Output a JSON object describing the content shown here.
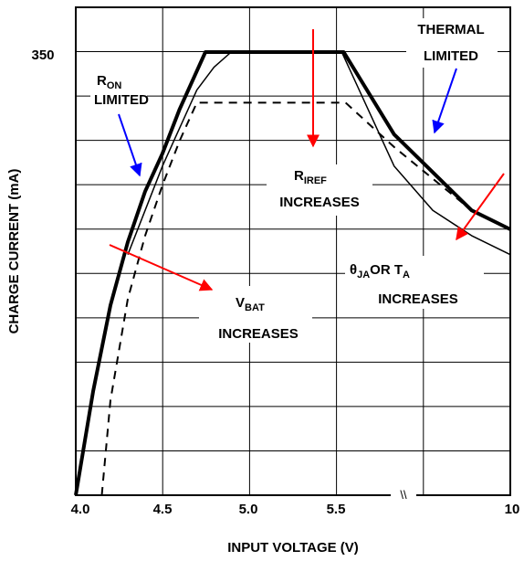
{
  "chart_data": {
    "type": "line",
    "title": "",
    "xlabel": "INPUT VOLTAGE (V)",
    "ylabel": "CHARGE CURRENT (mA)",
    "x_ticks": [
      "4.0",
      "4.5",
      "5.0",
      "5.5",
      "10"
    ],
    "y_ticks": [
      "350"
    ],
    "axis_break_mark": "\\\\",
    "xlim": [
      4.0,
      10
    ],
    "ylim": [
      0,
      350
    ],
    "grid": true,
    "series": [
      {
        "style": "thick-solid",
        "x": [
          4.0,
          4.1,
          4.2,
          4.3,
          4.4,
          4.5,
          4.6,
          4.7,
          4.75,
          5.7,
          7,
          8,
          9,
          10
        ],
        "y": [
          0,
          82,
          150,
          200,
          240,
          270,
          305,
          335,
          350,
          350,
          285,
          255,
          225,
          210
        ]
      },
      {
        "style": "thin-solid",
        "x": [
          4.3,
          4.4,
          4.5,
          4.6,
          4.7,
          4.8,
          4.9,
          5.65,
          7,
          8,
          9,
          10
        ],
        "y": [
          190,
          225,
          260,
          290,
          320,
          338,
          350,
          350,
          260,
          225,
          205,
          190
        ]
      },
      {
        "style": "dashed",
        "x": [
          4.15,
          4.2,
          4.3,
          4.4,
          4.5,
          4.6,
          4.7,
          5.75,
          7,
          8,
          9,
          10
        ],
        "y": [
          0,
          75,
          155,
          205,
          245,
          280,
          310,
          310,
          275,
          250,
          225,
          210
        ]
      }
    ],
    "annotations": [
      {
        "text": "R",
        "sub": "ON",
        "line2": "LIMITED"
      },
      {
        "text": "THERMAL",
        "line2": "LIMITED"
      },
      {
        "text": "R",
        "sub": "IREF",
        "line2": "INCREASES"
      },
      {
        "text": "θ",
        "sub": "JA",
        "mid": "OR T",
        "sub2": "A",
        "line2": "INCREASES"
      },
      {
        "text": "V",
        "sub": "BAT",
        "line2": "INCREASES"
      }
    ],
    "arrow_colors": {
      "red": "#ff0000",
      "blue": "#0000ff"
    }
  }
}
